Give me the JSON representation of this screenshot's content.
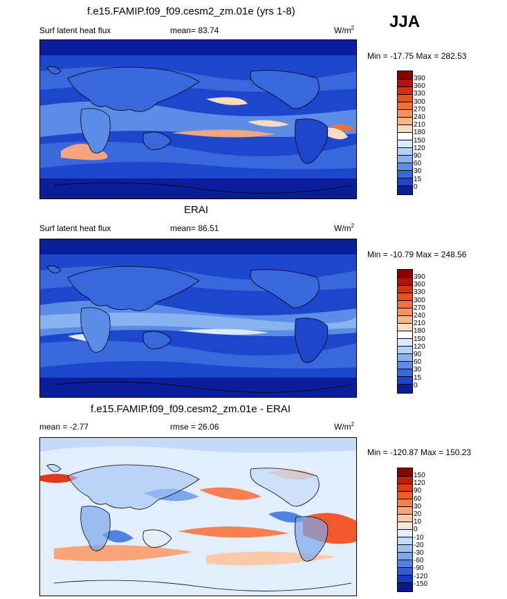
{
  "season": "JJA",
  "panels": [
    {
      "title": "f.e15.FAMIP.f09_f09.cesm2_zm.01e (yrs 1-8)",
      "left_label": "Surf latent heat flux",
      "stat_label": "mean=",
      "stat_value": "83.74",
      "units": "W/m",
      "units_sup": "2",
      "minmax": "Min = -17.75 Max = 282.53",
      "colorbar": {
        "labels": [
          "390",
          "360",
          "330",
          "300",
          "270",
          "240",
          "210",
          "180",
          "150",
          "120",
          "90",
          "60",
          "30",
          "15",
          "0"
        ],
        "colors": [
          "#8b0000",
          "#b2110c",
          "#d6300f",
          "#eb4f1f",
          "#f46f3c",
          "#f69161",
          "#f9b48a",
          "#fcdcc0",
          "#ffffff",
          "#dbeafc",
          "#b4d1f7",
          "#88b2f0",
          "#5b8ce6",
          "#3868dc",
          "#1d46cc",
          "#0a1e9a"
        ]
      }
    },
    {
      "title": "ERAI",
      "left_label": "Surf latent heat flux",
      "stat_label": "mean=",
      "stat_value": "86.51",
      "units": "W/m",
      "units_sup": "2",
      "minmax": "Min = -10.79 Max = 248.56",
      "colorbar": {
        "labels": [
          "390",
          "360",
          "330",
          "300",
          "270",
          "240",
          "210",
          "180",
          "150",
          "120",
          "90",
          "60",
          "30",
          "15",
          "0"
        ],
        "colors": [
          "#8b0000",
          "#b2110c",
          "#d6300f",
          "#eb4f1f",
          "#f46f3c",
          "#f69161",
          "#f9b48a",
          "#fcdcc0",
          "#ffffff",
          "#dbeafc",
          "#b4d1f7",
          "#88b2f0",
          "#5b8ce6",
          "#3868dc",
          "#1d46cc",
          "#0a1e9a"
        ]
      }
    },
    {
      "title": "f.e15.FAMIP.f09_f09.cesm2_zm.01e - ERAI",
      "left_label": "mean =",
      "left_value": "-2.77",
      "stat_label": "rmse =",
      "stat_value": "26.06",
      "units": "W/m",
      "units_sup": "2",
      "minmax": "Min = -120.87 Max = 150.23",
      "colorbar": {
        "labels": [
          "150",
          "120",
          "90",
          "60",
          "30",
          "20",
          "10",
          "0",
          "-10",
          "-20",
          "-30",
          "-60",
          "-90",
          "-120",
          "-150"
        ],
        "colors": [
          "#8b0000",
          "#c11a0e",
          "#e2391a",
          "#f25a2e",
          "#f6804f",
          "#f9a57b",
          "#fccaa8",
          "#fde8d8",
          "#e3eefc",
          "#c4daf8",
          "#a0c2f3",
          "#7aa6ec",
          "#4f82e2",
          "#2f5fd8",
          "#1538c6",
          "#061a8c"
        ]
      }
    }
  ]
}
